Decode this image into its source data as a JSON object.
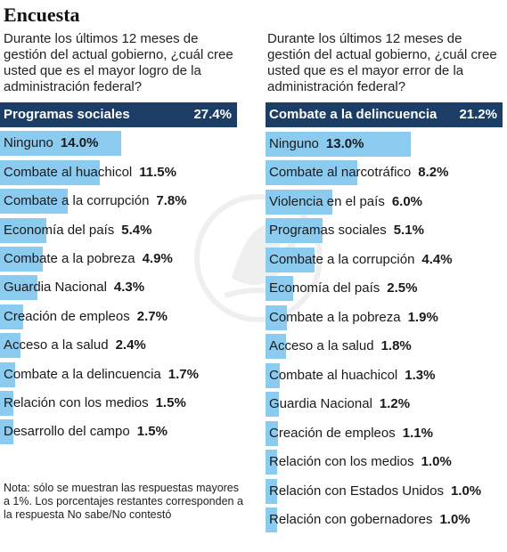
{
  "title": "Encuesta",
  "colors": {
    "bar": "#8ccbf0",
    "bar_top": "#1c3e66"
  },
  "chart_data": [
    {
      "type": "bar",
      "orientation": "horizontal",
      "question": "Durante los últimos 12 meses de gestión del actual gobierno, ¿cuál cree usted que es el mayor logro de la administración federal?",
      "categories": [
        "Programas sociales",
        "Ninguno",
        "Combate al huachicol",
        "Combate a la corrupción",
        "Economía del país",
        "Combate a la pobreza",
        "Guardia Nacional",
        "Creación de empleos",
        "Acceso a la salud",
        "Combate a la delincuencia",
        "Relación con los medios",
        "Desarrollo del campo"
      ],
      "values": [
        27.4,
        14.0,
        11.5,
        7.8,
        5.4,
        4.9,
        4.3,
        2.7,
        2.4,
        1.7,
        1.5,
        1.5
      ],
      "value_labels": [
        "27.4%",
        "14.0%",
        "11.5%",
        "7.8%",
        "5.4%",
        "4.9%",
        "4.3%",
        "2.7%",
        "2.4%",
        "1.7%",
        "1.5%",
        "1.5%"
      ],
      "xlim": [
        0,
        27.4
      ]
    },
    {
      "type": "bar",
      "orientation": "horizontal",
      "question": "Durante los últimos 12 meses de gestión del actual gobierno, ¿cuál cree usted que es el mayor error de la administración federal?",
      "categories": [
        "Combate a la delincuencia",
        "Ninguno",
        "Combate al narcotráfico",
        "Violencia en el país",
        "Programas sociales",
        "Combate a la corrupción",
        "Economía del país",
        "Combate a la pobreza",
        "Acceso a la salud",
        "Combate al huachicol",
        "Guardia Nacional",
        "Creación de empleos",
        "Relación con los medios",
        "Relación con Estados Unidos",
        "Relación con gobernadores"
      ],
      "values": [
        21.2,
        13.0,
        8.2,
        6.0,
        5.1,
        4.4,
        2.5,
        1.9,
        1.8,
        1.3,
        1.2,
        1.1,
        1.0,
        1.0,
        1.0
      ],
      "value_labels": [
        "21.2%",
        "13.0%",
        "8.2%",
        "6.0%",
        "5.1%",
        "4.4%",
        "2.5%",
        "1.9%",
        "1.8%",
        "1.3%",
        "1.2%",
        "1.1%",
        "1.0%",
        "1.0%",
        "1.0%"
      ],
      "xlim": [
        0,
        21.2
      ]
    }
  ],
  "note": "Nota: sólo se muestran las respuestas mayores a 1%. Los porcentajes restantes corresponden a la respuesta No sabe/No contestó"
}
